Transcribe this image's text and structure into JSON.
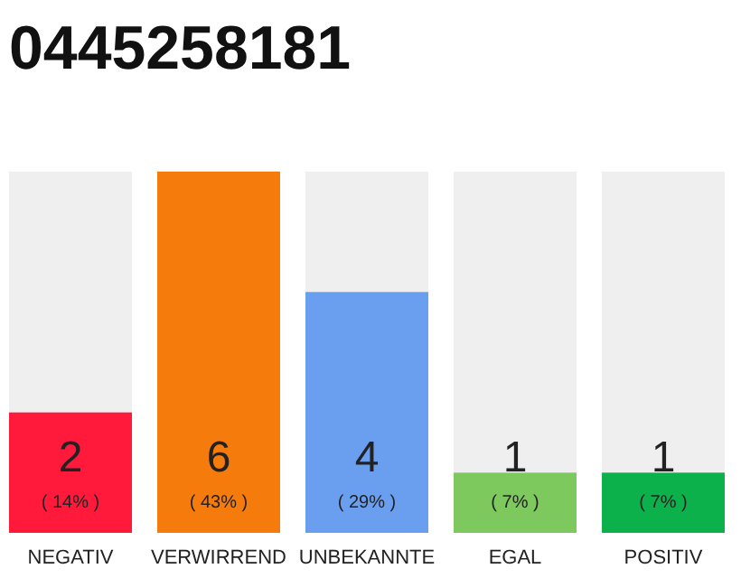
{
  "chart_data": {
    "type": "bar",
    "title": "0445258181",
    "categories": [
      "NEGATIV",
      "VERWIRREND",
      "UNBEKANNTE",
      "EGAL",
      "POSITIV"
    ],
    "values": [
      2,
      6,
      4,
      1,
      1
    ],
    "colors": [
      "#ff1a3c",
      "#f57c0c",
      "#6a9fef",
      "#7dc95e",
      "#0db14b"
    ],
    "data_labels": true,
    "tick_labels": "x",
    "annotations": [
      "( 14% )",
      "( 43% )",
      "( 29% )",
      "( 7% )",
      "( 7% )"
    ]
  }
}
